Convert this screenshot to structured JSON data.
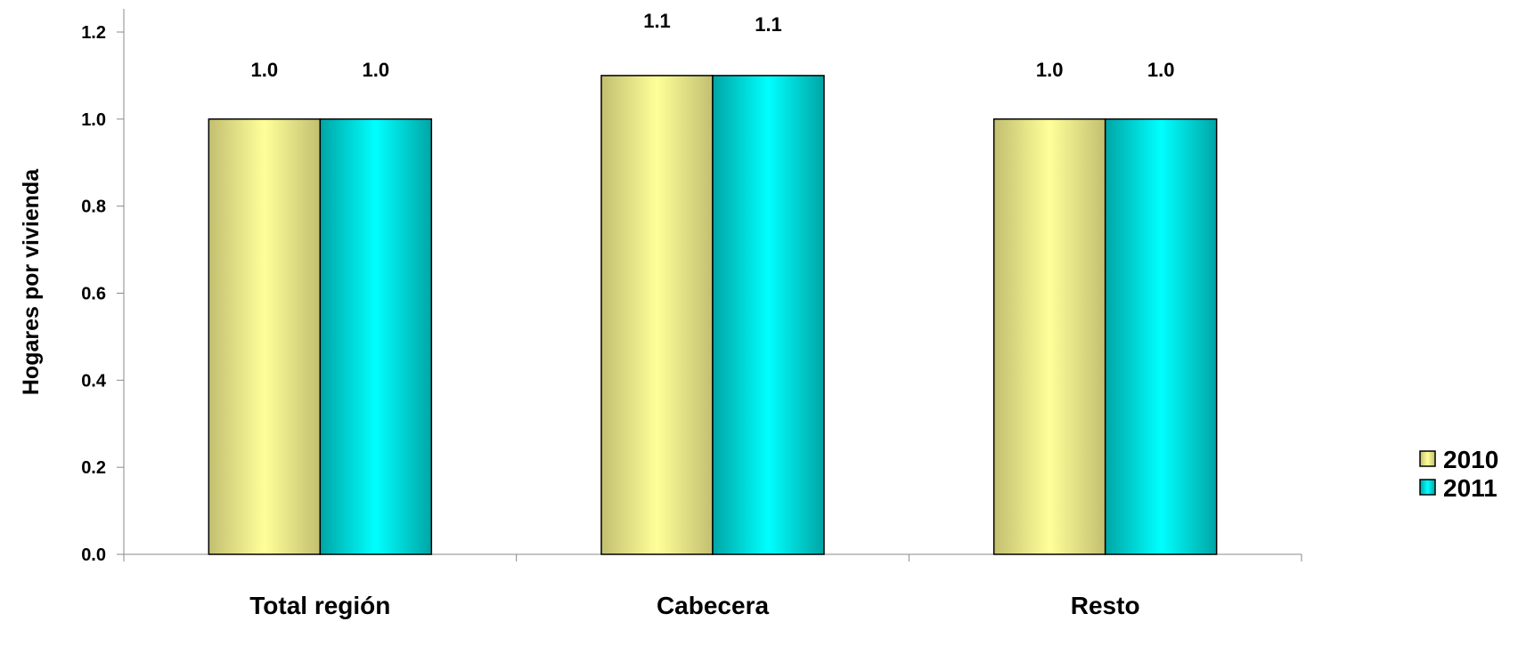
{
  "chart_data": {
    "type": "bar",
    "categories": [
      "Total región",
      "Cabecera",
      "Resto"
    ],
    "series": [
      {
        "name": "2010",
        "values": [
          1.0,
          1.1,
          1.0
        ],
        "labels": [
          "1.0",
          "1.1",
          "1.0"
        ],
        "color": "#c2bf70",
        "highlight": "#ffff99"
      },
      {
        "name": "2011",
        "values": [
          1.0,
          1.1,
          1.0
        ],
        "labels": [
          "1.0",
          "1.1",
          "1.0"
        ],
        "color": "#00a5a5",
        "highlight": "#00ffff"
      }
    ],
    "ylabel": "Hogares por vivienda",
    "xlabel": "",
    "ylim": [
      0,
      1.2
    ],
    "yticks": [
      "0.0",
      "0.2",
      "0.4",
      "0.6",
      "0.8",
      "1.0",
      "1.2"
    ],
    "legend_position": "right",
    "grid": false
  }
}
